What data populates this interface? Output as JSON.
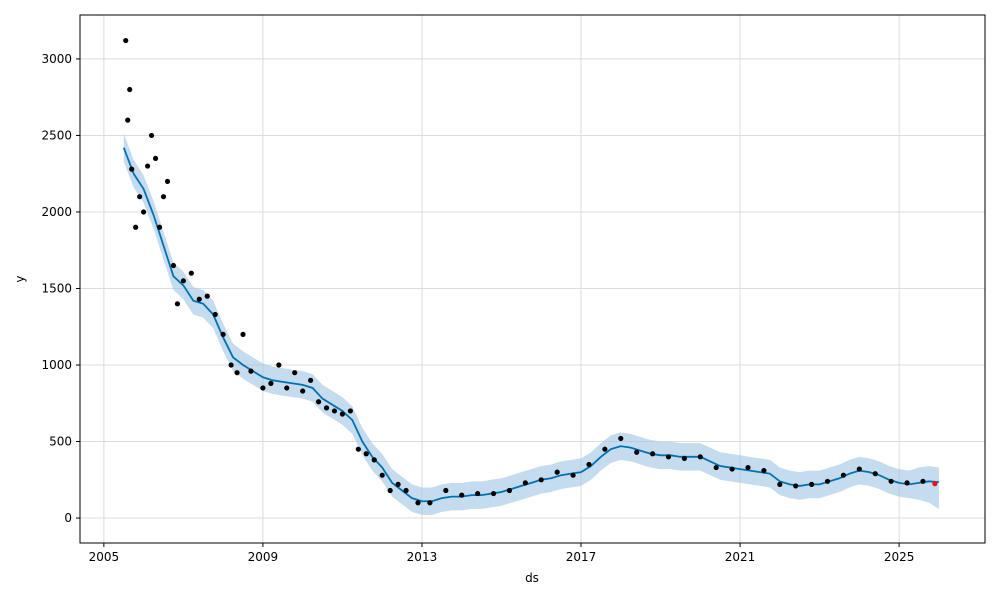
{
  "chart_data": {
    "type": "forecast",
    "x_label": "ds",
    "y_label": "y",
    "xlim": [
      2004.4,
      2027.16
    ],
    "ylim": [
      -163,
      3287
    ],
    "xticks": [
      2005,
      2009,
      2013,
      2017,
      2021,
      2025
    ],
    "yticks": [
      0,
      500,
      1000,
      1500,
      2000,
      2500,
      3000
    ],
    "grid": true,
    "series": [
      {
        "mode": "line",
        "color": "#0072B2",
        "band_color": "#9ec5e2",
        "x": [
          2005.5,
          2005.75,
          2006,
          2006.25,
          2006.5,
          2006.75,
          2007,
          2007.25,
          2007.5,
          2007.75,
          2008,
          2008.25,
          2008.5,
          2008.75,
          2009,
          2009.25,
          2009.5,
          2009.75,
          2010,
          2010.25,
          2010.5,
          2010.75,
          2011,
          2011.25,
          2011.5,
          2011.75,
          2012,
          2012.25,
          2012.5,
          2012.75,
          2013,
          2013.25,
          2013.5,
          2013.75,
          2014,
          2014.25,
          2014.5,
          2014.75,
          2015,
          2015.25,
          2015.5,
          2015.75,
          2016,
          2016.25,
          2016.5,
          2016.75,
          2017,
          2017.25,
          2017.5,
          2017.75,
          2018,
          2018.25,
          2018.5,
          2018.75,
          2019,
          2019.25,
          2019.5,
          2019.75,
          2020,
          2020.25,
          2020.5,
          2020.75,
          2021,
          2021.25,
          2021.5,
          2021.75,
          2022,
          2022.25,
          2022.5,
          2022.75,
          2023,
          2023.25,
          2023.5,
          2023.75,
          2024,
          2024.25,
          2024.5,
          2024.75,
          2025,
          2025.25,
          2025.5,
          2025.75,
          2026
        ],
        "values": [
          2420,
          2250,
          2150,
          1980,
          1780,
          1580,
          1520,
          1420,
          1400,
          1330,
          1180,
          1050,
          1000,
          960,
          920,
          900,
          890,
          880,
          870,
          850,
          780,
          740,
          700,
          640,
          500,
          400,
          330,
          230,
          180,
          130,
          110,
          110,
          130,
          140,
          140,
          150,
          150,
          160,
          170,
          190,
          210,
          230,
          250,
          260,
          280,
          290,
          300,
          340,
          400,
          450,
          470,
          460,
          440,
          420,
          410,
          410,
          400,
          400,
          400,
          370,
          340,
          330,
          320,
          310,
          300,
          290,
          240,
          220,
          210,
          220,
          220,
          240,
          260,
          290,
          310,
          300,
          280,
          250,
          230,
          220,
          230,
          240,
          235
        ],
        "lower": [
          2330,
          2160,
          2060,
          1890,
          1690,
          1490,
          1430,
          1330,
          1310,
          1240,
          1090,
          960,
          910,
          870,
          830,
          810,
          800,
          790,
          780,
          760,
          690,
          650,
          610,
          550,
          410,
          310,
          240,
          140,
          90,
          40,
          20,
          20,
          40,
          50,
          50,
          60,
          60,
          70,
          80,
          100,
          120,
          140,
          160,
          170,
          190,
          200,
          210,
          250,
          310,
          360,
          380,
          370,
          350,
          330,
          320,
          320,
          310,
          310,
          310,
          280,
          250,
          240,
          230,
          220,
          210,
          200,
          150,
          130,
          120,
          130,
          130,
          150,
          170,
          200,
          220,
          210,
          190,
          160,
          140,
          130,
          120,
          100,
          60
        ],
        "upper": [
          2510,
          2340,
          2240,
          2070,
          1870,
          1670,
          1610,
          1510,
          1490,
          1420,
          1270,
          1140,
          1090,
          1050,
          1010,
          990,
          980,
          970,
          960,
          940,
          870,
          830,
          790,
          730,
          590,
          490,
          420,
          320,
          270,
          220,
          200,
          200,
          220,
          230,
          230,
          240,
          240,
          250,
          260,
          280,
          300,
          320,
          340,
          350,
          370,
          380,
          390,
          430,
          490,
          540,
          560,
          550,
          530,
          510,
          500,
          500,
          490,
          490,
          490,
          460,
          430,
          420,
          410,
          400,
          390,
          380,
          330,
          310,
          300,
          310,
          310,
          330,
          350,
          380,
          400,
          390,
          370,
          340,
          320,
          310,
          330,
          340,
          330
        ]
      },
      {
        "mode": "points",
        "color": "#000000",
        "x": [
          2005.55,
          2005.6,
          2005.65,
          2005.7,
          2005.8,
          2005.9,
          2006,
          2006.1,
          2006.2,
          2006.3,
          2006.4,
          2006.5,
          2006.6,
          2006.75,
          2006.85,
          2007,
          2007.2,
          2007.4,
          2007.6,
          2007.8,
          2008,
          2008.2,
          2008.35,
          2008.5,
          2008.7,
          2009,
          2009.2,
          2009.4,
          2009.6,
          2009.8,
          2010,
          2010.2,
          2010.4,
          2010.6,
          2010.8,
          2011,
          2011.2,
          2011.4,
          2011.6,
          2011.8,
          2012,
          2012.2,
          2012.4,
          2012.6,
          2012.9,
          2013.2,
          2013.6,
          2014,
          2014.4,
          2014.8,
          2015.2,
          2015.6,
          2016,
          2016.4,
          2016.8,
          2017.2,
          2017.6,
          2018,
          2018.4,
          2018.8,
          2019.2,
          2019.6,
          2020,
          2020.4,
          2020.8,
          2021.2,
          2021.6,
          2022,
          2022.4,
          2022.8,
          2023.2,
          2023.6,
          2024,
          2024.4,
          2024.8,
          2025.2,
          2025.6
        ],
        "values": [
          3120,
          2600,
          2800,
          2280,
          1900,
          2100,
          2000,
          2300,
          2500,
          2350,
          1900,
          2100,
          2200,
          1650,
          1400,
          1550,
          1600,
          1430,
          1450,
          1330,
          1200,
          1000,
          950,
          1200,
          960,
          850,
          880,
          1000,
          850,
          950,
          830,
          900,
          760,
          720,
          700,
          680,
          700,
          450,
          420,
          380,
          280,
          180,
          220,
          180,
          100,
          100,
          180,
          150,
          160,
          160,
          180,
          230,
          250,
          300,
          280,
          350,
          450,
          520,
          430,
          420,
          400,
          390,
          400,
          330,
          320,
          330,
          310,
          220,
          210,
          220,
          240,
          280,
          320,
          290,
          240,
          230,
          240
        ]
      },
      {
        "mode": "points",
        "color": "#e8141c",
        "x": [
          2025.9
        ],
        "values": [
          225
        ]
      }
    ]
  }
}
